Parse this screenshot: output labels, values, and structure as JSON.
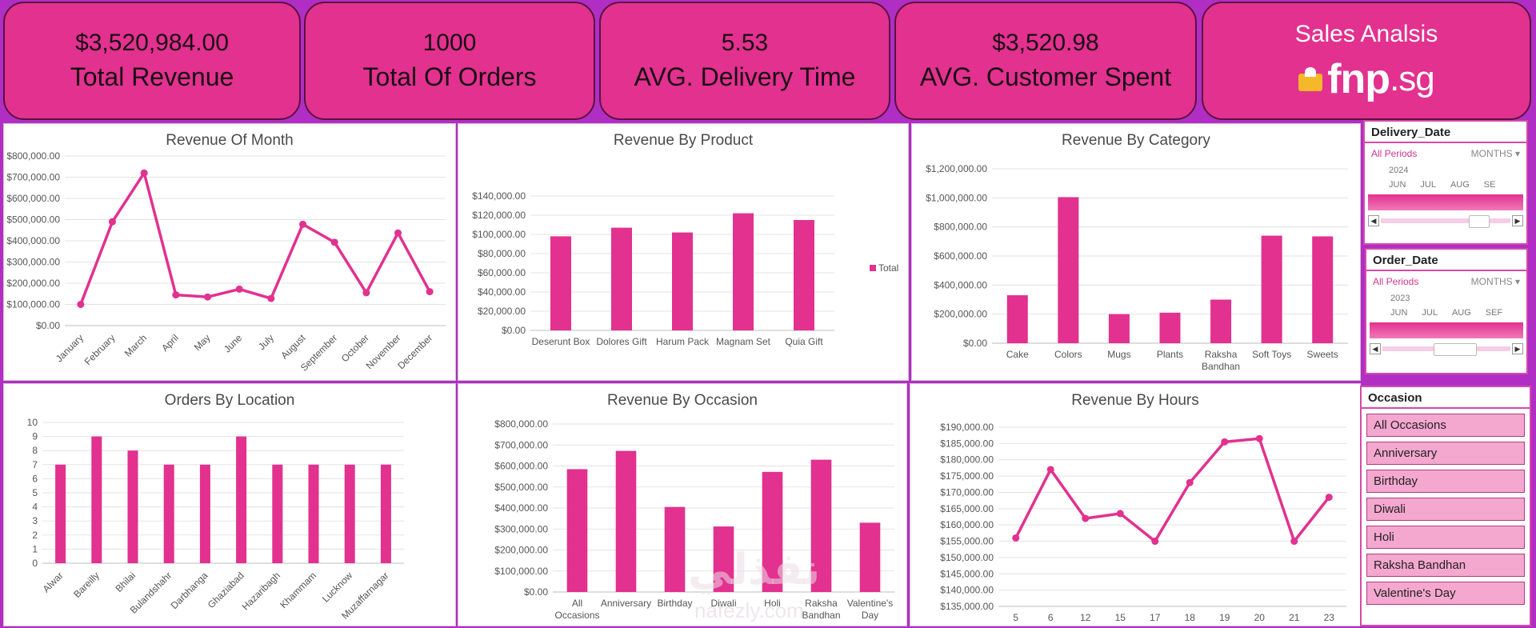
{
  "kpis": [
    {
      "value": "$3,520,984.00",
      "label": "Total Revenue"
    },
    {
      "value": "1000",
      "label": "Total Of Orders"
    },
    {
      "value": "5.53",
      "label": "AVG. Delivery Time"
    },
    {
      "value": "$3,520.98",
      "label": "AVG. Customer Spent"
    }
  ],
  "brand": {
    "title": "Sales Analsis",
    "logo_main": "fnp",
    "logo_suffix": ".sg"
  },
  "colors": {
    "accent": "#e2318f",
    "background": "#b02ec4",
    "bar": "#e2318f"
  },
  "chart_data": [
    {
      "id": "revenue_month",
      "type": "line",
      "title": "Revenue Of Month",
      "categories": [
        "January",
        "February",
        "March",
        "April",
        "May",
        "June",
        "July",
        "August",
        "September",
        "October",
        "November",
        "December"
      ],
      "values": [
        100000,
        490000,
        720000,
        145000,
        135000,
        172000,
        128000,
        478000,
        393000,
        155000,
        437000,
        160000
      ],
      "ylim": [
        0,
        800000
      ],
      "yticks": [
        "$0.00",
        "$100,000.00",
        "$200,000.00",
        "$300,000.00",
        "$400,000.00",
        "$500,000.00",
        "$600,000.00",
        "$700,000.00",
        "$800,000.00"
      ]
    },
    {
      "id": "revenue_product",
      "type": "bar",
      "title": "Revenue By Product",
      "categories": [
        "Deserunt Box",
        "Dolores Gift",
        "Harum Pack",
        "Magnam Set",
        "Quia Gift"
      ],
      "values": [
        98000,
        107000,
        102000,
        122000,
        115000
      ],
      "ylim": [
        0,
        140000
      ],
      "yticks": [
        "$0.00",
        "$20,000.00",
        "$40,000.00",
        "$60,000.00",
        "$80,000.00",
        "$100,000.00",
        "$120,000.00",
        "$140,000.00"
      ],
      "legend": "Total"
    },
    {
      "id": "revenue_category",
      "type": "bar",
      "title": "Revenue By Category",
      "categories": [
        "Cake",
        "Colors",
        "Mugs",
        "Plants",
        "Raksha Bandhan",
        "Soft Toys",
        "Sweets"
      ],
      "values": [
        330000,
        1005000,
        200000,
        210000,
        300000,
        740000,
        735000
      ],
      "ylim": [
        0,
        1200000
      ],
      "yticks": [
        "$0.00",
        "$200,000.00",
        "$400,000.00",
        "$600,000.00",
        "$800,000.00",
        "$1,000,000.00",
        "$1,200,000.00"
      ]
    },
    {
      "id": "orders_location",
      "type": "bar",
      "title": "Orders By Location",
      "categories": [
        "Alwar",
        "Bareilly",
        "Bhilai",
        "Bulandshahr",
        "Darbhanga",
        "Ghaziabad",
        "Hazaribagh",
        "Khammam",
        "Lucknow",
        "Muzaffarnagar"
      ],
      "values": [
        7,
        9,
        8,
        7,
        7,
        9,
        7,
        7,
        7,
        7
      ],
      "ylim": [
        0,
        10
      ],
      "yticks": [
        "0",
        "1",
        "2",
        "3",
        "4",
        "5",
        "6",
        "7",
        "8",
        "9",
        "10"
      ]
    },
    {
      "id": "revenue_occasion",
      "type": "bar",
      "title": "Revenue By Occasion",
      "categories": [
        "All Occasions",
        "Anniversary",
        "Birthday",
        "Diwali",
        "Holi",
        "Raksha Bandhan",
        "Valentine's Day"
      ],
      "values": [
        585000,
        672000,
        405000,
        312000,
        572000,
        630000,
        330000
      ],
      "ylim": [
        0,
        800000
      ],
      "yticks": [
        "$0.00",
        "$100,000.00",
        "$200,000.00",
        "$300,000.00",
        "$400,000.00",
        "$500,000.00",
        "$600,000.00",
        "$700,000.00",
        "$800,000.00"
      ]
    },
    {
      "id": "revenue_hours",
      "type": "line",
      "title": "Revenue By Hours",
      "categories": [
        "5",
        "6",
        "12",
        "15",
        "17",
        "18",
        "19",
        "20",
        "21",
        "23"
      ],
      "values": [
        156000,
        177000,
        162000,
        163500,
        155000,
        173000,
        185500,
        186500,
        155000,
        168500
      ],
      "ylim": [
        135000,
        190000
      ],
      "yticks": [
        "$135,000.00",
        "$140,000.00",
        "$145,000.00",
        "$150,000.00",
        "$155,000.00",
        "$160,000.00",
        "$165,000.00",
        "$170,000.00",
        "$175,000.00",
        "$180,000.00",
        "$185,000.00",
        "$190,000.00"
      ]
    }
  ],
  "slicers": {
    "delivery": {
      "title": "Delivery_Date",
      "all": "All Periods",
      "granularity": "MONTHS",
      "year": "2024",
      "months": [
        "JUN",
        "JUL",
        "AUG",
        "SE"
      ]
    },
    "order": {
      "title": "Order_Date",
      "all": "All Periods",
      "granularity": "MONTHS",
      "year": "2023",
      "months": [
        "JUN",
        "JUL",
        "AUG",
        "SEF"
      ]
    },
    "occasion": {
      "title": "Occasion",
      "items": [
        "All Occasions",
        "Anniversary",
        "Birthday",
        "Diwali",
        "Holi",
        "Raksha Bandhan",
        "Valentine's Day"
      ]
    }
  },
  "watermark": {
    "arabic": "نفذلي",
    "latin": "nafezly.com"
  }
}
